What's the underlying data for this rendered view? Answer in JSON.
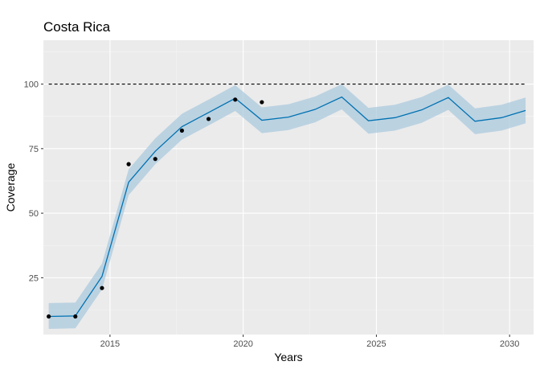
{
  "chart_data": {
    "type": "line",
    "title": "Costa Rica",
    "xlabel": "Years",
    "ylabel": "Coverage",
    "xlim": [
      2012.5,
      2030.9
    ],
    "ylim": [
      3,
      117
    ],
    "x_ticks": [
      2015,
      2020,
      2025,
      2030
    ],
    "x_minor_ticks": [
      2012.5,
      2017.5,
      2022.5,
      2027.5
    ],
    "y_ticks": [
      25,
      50,
      75,
      100
    ],
    "y_minor_ticks": [
      12.5,
      37.5,
      62.5,
      87.5,
      112.5
    ],
    "grid": true,
    "target": {
      "value": 100,
      "x_start": 2012.7,
      "x_end": 2030.6,
      "style": "dashed",
      "color": "#000000"
    },
    "forecast": {
      "color": "#0072B2",
      "band_color": "#A6C8DD",
      "x": [
        2012.7,
        2013.7,
        2014.7,
        2015.7,
        2016.7,
        2017.7,
        2018.7,
        2019.7,
        2020.7,
        2021.7,
        2022.7,
        2023.7,
        2024.7,
        2025.7,
        2026.7,
        2027.7,
        2028.7,
        2029.7,
        2030.6
      ],
      "y": [
        10,
        10.2,
        25.5,
        62,
        74,
        83.5,
        89,
        94.5,
        86,
        87.2,
        90.2,
        95,
        85.8,
        87,
        90,
        94.8,
        85.6,
        87,
        89.8
      ],
      "lower": [
        5.2,
        5.4,
        20.5,
        57,
        69,
        78.5,
        84,
        89.6,
        81,
        82.2,
        85.2,
        90.2,
        80.8,
        82,
        85,
        90,
        80.6,
        82,
        84.8
      ],
      "upper": [
        15.2,
        15.4,
        30.5,
        67,
        79,
        88.5,
        94,
        99.6,
        91,
        92.2,
        95.2,
        100,
        90.8,
        92,
        95,
        99.8,
        90.6,
        92,
        94.8
      ]
    },
    "observed": {
      "color": "#000000",
      "x": [
        2012.7,
        2013.7,
        2014.7,
        2015.7,
        2016.7,
        2017.7,
        2018.7,
        2019.7,
        2020.7
      ],
      "y": [
        10,
        10,
        21,
        69,
        71,
        82,
        86.5,
        94,
        93
      ]
    }
  }
}
